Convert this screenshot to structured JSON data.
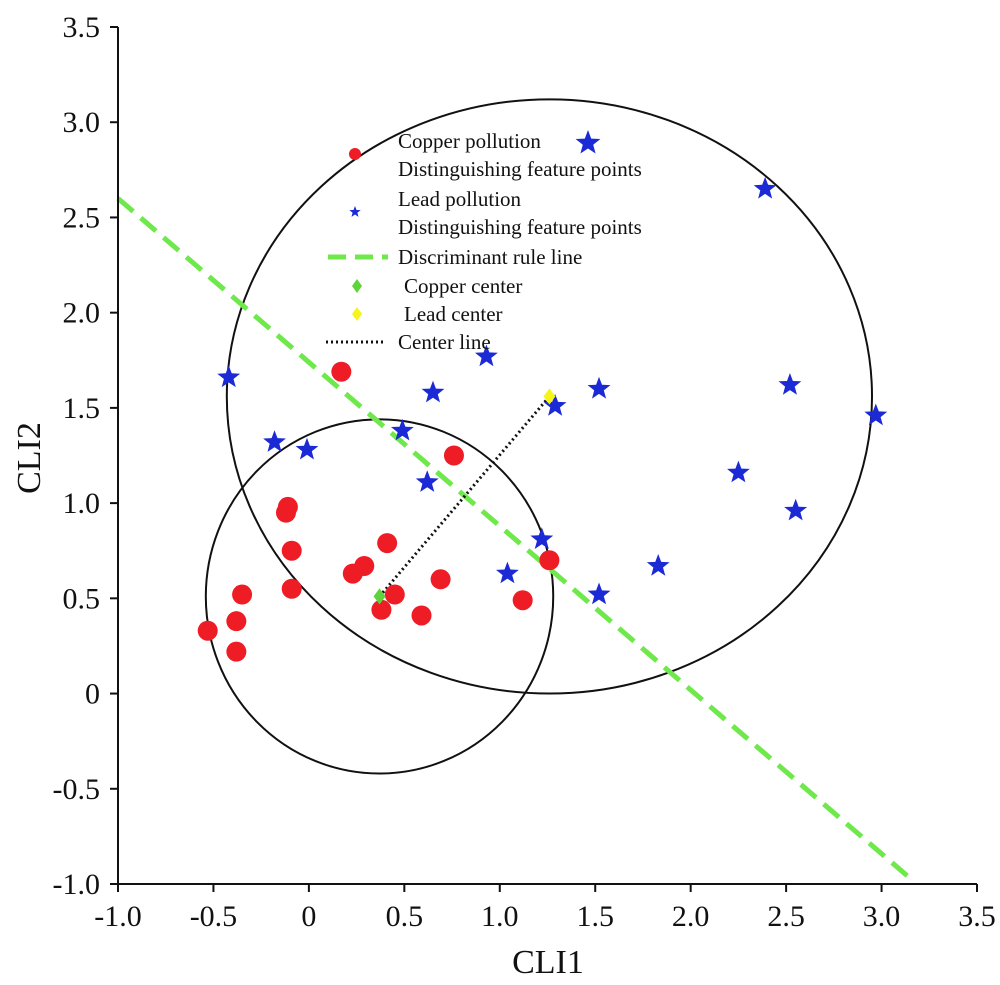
{
  "chart_data": {
    "type": "scatter",
    "xlabel": "CLI1",
    "ylabel": "CLI2",
    "xlim": [
      -1.0,
      3.5
    ],
    "ylim": [
      -1.0,
      3.5
    ],
    "xticks": [
      "-1.0",
      "-0.5",
      "0",
      "0.5",
      "1.0",
      "1.5",
      "2.0",
      "2.5",
      "3.0",
      "3.5"
    ],
    "xtick_values": [
      -1.0,
      -0.5,
      0,
      0.5,
      1.0,
      1.5,
      2.0,
      2.5,
      3.0,
      3.5
    ],
    "yticks": [
      "-1.0",
      "-0.5",
      "0",
      "0.5",
      "1.0",
      "1.5",
      "2.0",
      "2.5",
      "3.0",
      "3.5"
    ],
    "ytick_values": [
      -1.0,
      -0.5,
      0,
      0.5,
      1.0,
      1.5,
      2.0,
      2.5,
      3.0,
      3.5
    ],
    "grid": false,
    "legend_placement": "top-center",
    "legend": [
      {
        "line1": "Copper pollution",
        "line2": "Distinguishing feature points"
      },
      {
        "line1": "Lead pollution",
        "line2": "Distinguishing feature points"
      },
      {
        "line1": "Discriminant rule line"
      },
      {
        "line1": "Copper center"
      },
      {
        "line1": "Lead center"
      },
      {
        "line1": "Center line"
      }
    ],
    "colors": {
      "copper": "#ee1c25",
      "lead": "#1c2ad6",
      "rule_line": "#6ee84a",
      "copper_center": "#5ed43a",
      "lead_center": "#f5f51a",
      "center_line": "#111111",
      "circle": "#111111"
    },
    "series": [
      {
        "name": "Copper pollution Distinguishing feature points",
        "marker": "circle",
        "x": [
          -0.53,
          -0.38,
          -0.38,
          -0.35,
          -0.12,
          -0.11,
          -0.09,
          -0.09,
          0.17,
          0.23,
          0.29,
          0.38,
          0.41,
          0.45,
          0.59,
          0.69,
          0.76,
          1.12,
          1.26
        ],
        "y": [
          0.33,
          0.22,
          0.38,
          0.52,
          0.95,
          0.98,
          0.75,
          0.55,
          1.69,
          0.63,
          0.67,
          0.44,
          0.79,
          0.52,
          0.41,
          0.6,
          1.25,
          0.49,
          0.7
        ]
      },
      {
        "name": "Lead pollution Distinguishing feature points",
        "marker": "star",
        "x": [
          -0.42,
          -0.18,
          -0.01,
          0.49,
          0.62,
          0.65,
          0.93,
          1.04,
          1.22,
          1.29,
          1.52,
          1.52,
          1.83,
          2.25,
          2.39,
          2.52,
          2.55,
          2.97
        ],
        "y": [
          1.66,
          1.32,
          1.28,
          1.38,
          1.11,
          1.58,
          1.77,
          0.63,
          0.81,
          1.51,
          1.6,
          0.52,
          0.67,
          1.16,
          2.65,
          1.62,
          0.96,
          1.46
        ]
      }
    ],
    "copper_center": {
      "x": 0.37,
      "y": 0.51
    },
    "lead_center": {
      "x": 1.26,
      "y": 1.56
    },
    "discriminant_line": {
      "x": [
        -1.0,
        3.15
      ],
      "y": [
        2.6,
        -0.97
      ]
    },
    "circles": [
      {
        "cx": 0.37,
        "cy": 0.51,
        "rx": 0.91,
        "ry": 0.93
      },
      {
        "cx": 1.26,
        "cy": 1.56,
        "rx": 1.69,
        "ry": 1.56
      }
    ]
  }
}
